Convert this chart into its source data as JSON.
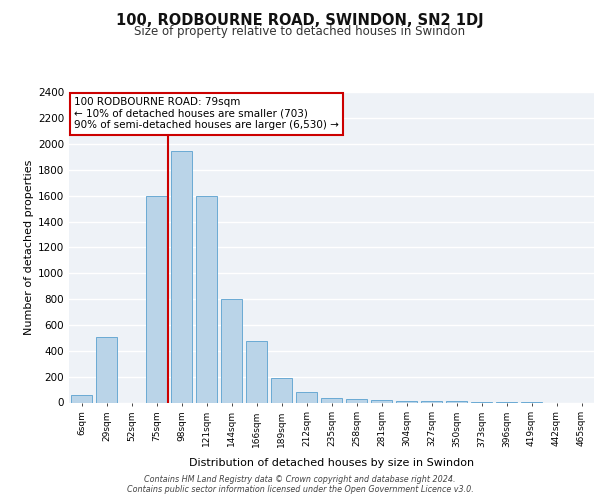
{
  "title": "100, RODBOURNE ROAD, SWINDON, SN2 1DJ",
  "subtitle": "Size of property relative to detached houses in Swindon",
  "xlabel": "Distribution of detached houses by size in Swindon",
  "ylabel": "Number of detached properties",
  "categories": [
    "6sqm",
    "29sqm",
    "52sqm",
    "75sqm",
    "98sqm",
    "121sqm",
    "144sqm",
    "166sqm",
    "189sqm",
    "212sqm",
    "235sqm",
    "258sqm",
    "281sqm",
    "304sqm",
    "327sqm",
    "350sqm",
    "373sqm",
    "396sqm",
    "419sqm",
    "442sqm",
    "465sqm"
  ],
  "values": [
    55,
    510,
    0,
    1600,
    1950,
    1600,
    800,
    480,
    190,
    80,
    35,
    25,
    20,
    15,
    12,
    10,
    5,
    2,
    1,
    0,
    0
  ],
  "bar_color": "#bad4e8",
  "bar_edge_color": "#6aaad4",
  "vline_x_index": 3,
  "vline_color": "#cc0000",
  "annotation_text": "100 RODBOURNE ROAD: 79sqm\n← 10% of detached houses are smaller (703)\n90% of semi-detached houses are larger (6,530) →",
  "annotation_box_color": "#ffffff",
  "annotation_box_edge": "#cc0000",
  "ylim": [
    0,
    2400
  ],
  "yticks": [
    0,
    200,
    400,
    600,
    800,
    1000,
    1200,
    1400,
    1600,
    1800,
    2000,
    2200,
    2400
  ],
  "bg_color": "#eef2f7",
  "footer_line1": "Contains HM Land Registry data © Crown copyright and database right 2024.",
  "footer_line2": "Contains public sector information licensed under the Open Government Licence v3.0."
}
